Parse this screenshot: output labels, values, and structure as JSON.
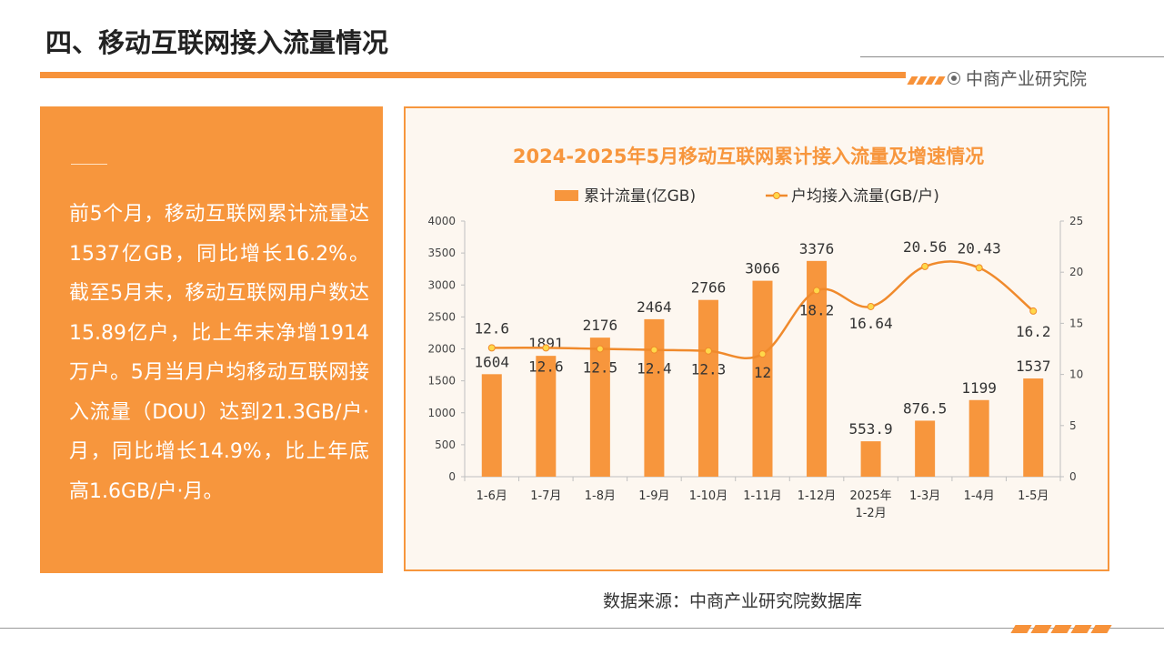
{
  "header": {
    "title": "四、移动互联网接入流量情况",
    "brand": "中商产业研究院"
  },
  "panel": {
    "text": "前5个月，移动互联网累计流量达1537亿GB，同比增长16.2%。截至5月末，移动互联网用户数达15.89亿户，比上年末净增1914万户。5月当月户均移动互联网接入流量（DOU）达到21.3GB/户·月，同比增长14.9%，比上年底高1.6GB/户·月。"
  },
  "source": "数据来源：中商产业研究院数据库",
  "colors": {
    "accent": "#f7963d",
    "bar": "#f7963d",
    "line": "#f08a2c",
    "marker": "#ffd84a"
  },
  "chart_data": {
    "type": "bar",
    "title": "2024-2025年5月移动互联网累计接入流量及增速情况",
    "categories": [
      "1-6月",
      "1-7月",
      "1-8月",
      "1-9月",
      "1-10月",
      "1-11月",
      "1-12月",
      "2025年\n1-2月",
      "1-3月",
      "1-4月",
      "1-5月"
    ],
    "series": [
      {
        "name": "累计流量(亿GB)",
        "type": "bar",
        "axis": "left",
        "values": [
          1604,
          1891,
          2176,
          2464,
          2766,
          3066,
          3376,
          553.9,
          876.5,
          1199,
          1537
        ]
      },
      {
        "name": "户均接入流量(GB/户)",
        "type": "line",
        "axis": "right",
        "values": [
          12.6,
          12.6,
          12.5,
          12.4,
          12.3,
          12,
          18.2,
          16.64,
          20.56,
          20.43,
          16.2
        ]
      }
    ],
    "y_left": {
      "min": 0,
      "max": 4000,
      "ticks": [
        0,
        500,
        1000,
        1500,
        2000,
        2500,
        3000,
        3500,
        4000
      ]
    },
    "y_right": {
      "min": 0,
      "max": 25,
      "ticks": [
        0,
        5,
        10,
        15,
        20,
        25
      ]
    },
    "grid": false,
    "legend": "top-center"
  }
}
